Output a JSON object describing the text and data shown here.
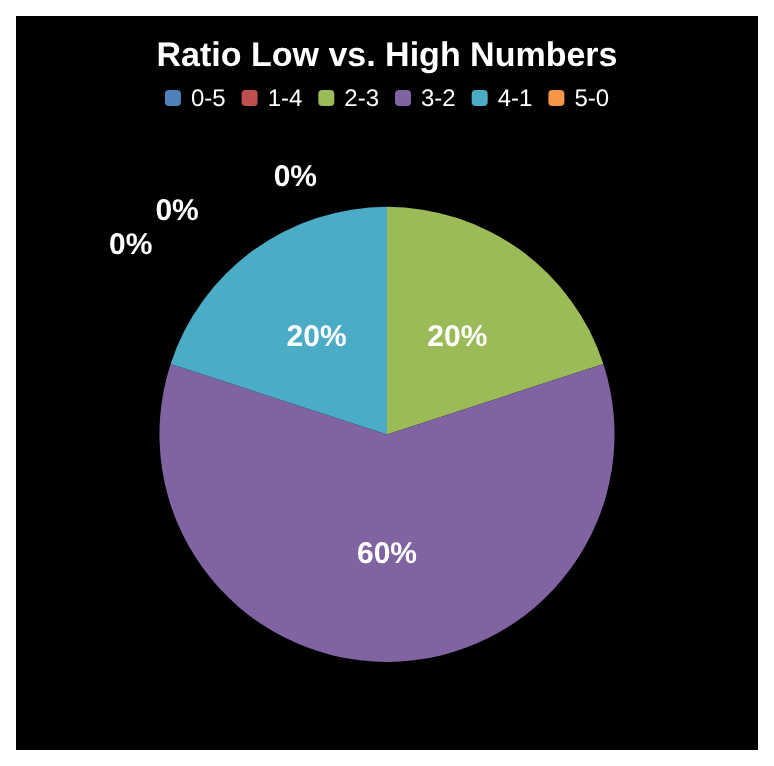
{
  "chart_data": {
    "type": "pie",
    "title": "Ratio Low vs. High Numbers",
    "categories": [
      "0-5",
      "1-4",
      "2-3",
      "3-2",
      "4-1",
      "5-0"
    ],
    "values": [
      0,
      0,
      20,
      60,
      20,
      0
    ],
    "colors": [
      "#4f81bd",
      "#c0504d",
      "#9bbb59",
      "#8064a2",
      "#4bacc6",
      "#f79646"
    ],
    "value_labels": [
      "0%",
      "0%",
      "20%",
      "60%",
      "20%",
      "0%"
    ],
    "legend": "top"
  }
}
